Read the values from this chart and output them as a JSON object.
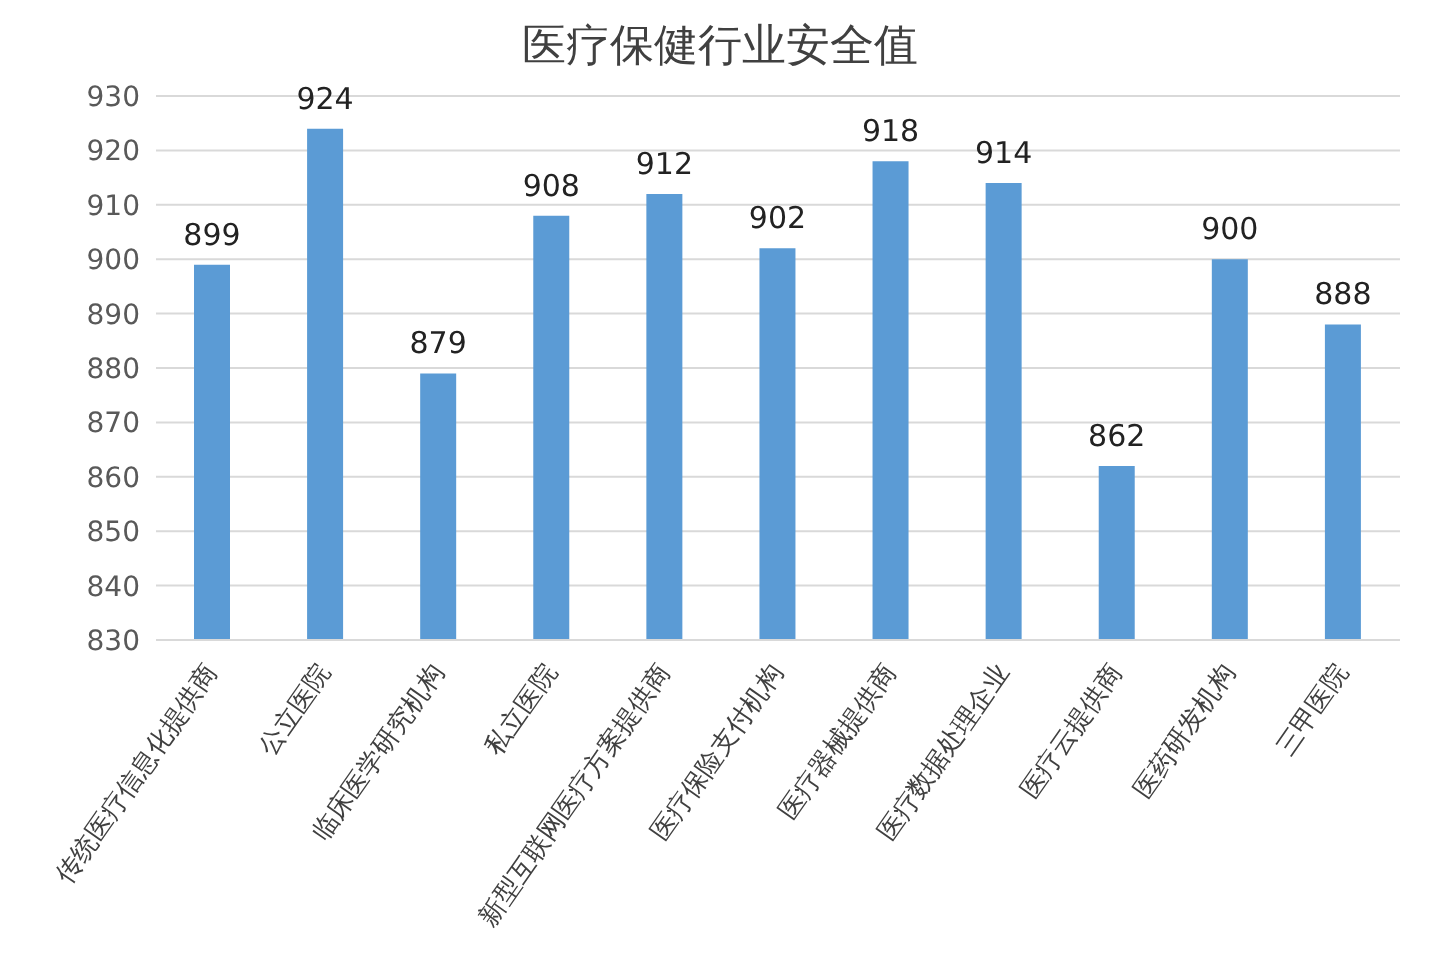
{
  "chart_data": {
    "type": "bar",
    "title": "医疗保健行业安全值",
    "categories": [
      "传统医疗信息化提供商",
      "公立医院",
      "临床医学研究机构",
      "私立医院",
      "新型互联网医疗方案提供商",
      "医疗保险支付机构",
      "医疗器械提供商",
      "医疗数据处理企业",
      "医疗云提供商",
      "医药研发机构",
      "三甲医院"
    ],
    "values": [
      899,
      924,
      879,
      908,
      912,
      902,
      918,
      914,
      862,
      900,
      888
    ],
    "color": "#5b9bd5",
    "ylim": [
      830,
      930
    ],
    "yticks": [
      830,
      840,
      850,
      860,
      870,
      880,
      890,
      900,
      910,
      920,
      930
    ],
    "grid": "y",
    "data_labels": true
  }
}
